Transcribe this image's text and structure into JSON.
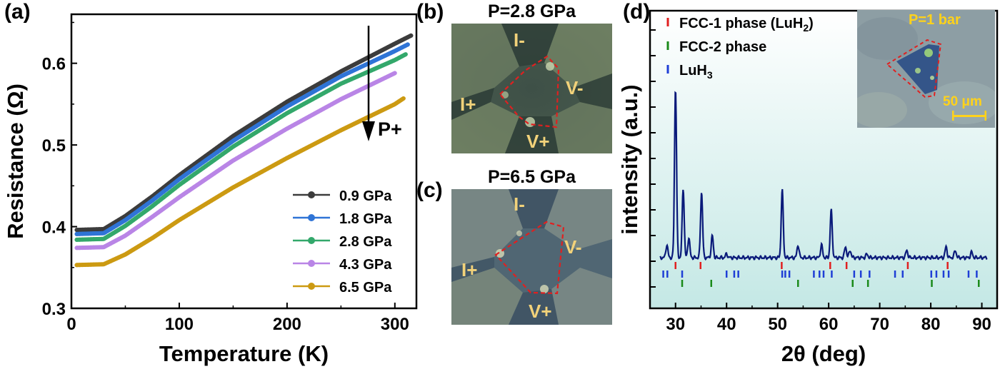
{
  "panels": {
    "a": "(a)",
    "b": "(b)",
    "c": "(c)",
    "d": "(d)"
  },
  "photo_b": {
    "title": "P=2.8 GPa",
    "labels": {
      "i_minus": "I-",
      "i_plus": "I+",
      "v_minus": "V-",
      "v_plus": "V+"
    }
  },
  "photo_c": {
    "title": "P=6.5 GPa",
    "labels": {
      "i_minus": "I-",
      "i_plus": "I+",
      "v_minus": "V-",
      "v_plus": "V+"
    }
  },
  "chart_data": [
    {
      "type": "line",
      "xlabel": "Temperature (K)",
      "ylabel": "Resistance (Ω)",
      "xlim": [
        0,
        320
      ],
      "ylim": [
        0.3,
        0.66
      ],
      "xticks": [
        "0",
        "100",
        "200",
        "300"
      ],
      "yticks": [
        "0.3",
        "0.4",
        "0.5",
        "0.6"
      ],
      "annotation": "P+",
      "legend_position": "bottom-right",
      "series": [
        {
          "name": "0.9 GPa",
          "color": "#3c3c3c",
          "x": [
            5,
            30,
            50,
            75,
            100,
            150,
            200,
            250,
            300,
            315
          ],
          "y": [
            0.396,
            0.397,
            0.413,
            0.437,
            0.463,
            0.511,
            0.553,
            0.59,
            0.624,
            0.634
          ]
        },
        {
          "name": "1.8 GPa",
          "color": "#2f74d6",
          "x": [
            5,
            30,
            50,
            75,
            100,
            150,
            200,
            250,
            300,
            312
          ],
          "y": [
            0.391,
            0.392,
            0.408,
            0.432,
            0.458,
            0.505,
            0.547,
            0.584,
            0.615,
            0.623
          ]
        },
        {
          "name": "2.8 GPa",
          "color": "#33a86b",
          "x": [
            5,
            30,
            50,
            75,
            100,
            150,
            200,
            250,
            300,
            310
          ],
          "y": [
            0.384,
            0.385,
            0.401,
            0.425,
            0.451,
            0.498,
            0.539,
            0.575,
            0.604,
            0.611
          ]
        },
        {
          "name": "4.3 GPa",
          "color": "#b985e6",
          "x": [
            5,
            30,
            50,
            75,
            100,
            150,
            200,
            250,
            300
          ],
          "y": [
            0.374,
            0.375,
            0.389,
            0.412,
            0.436,
            0.481,
            0.52,
            0.556,
            0.588
          ]
        },
        {
          "name": "6.5 GPa",
          "color": "#cc9a12",
          "x": [
            5,
            30,
            50,
            75,
            100,
            150,
            200,
            250,
            300,
            308
          ],
          "y": [
            0.353,
            0.354,
            0.366,
            0.386,
            0.408,
            0.448,
            0.484,
            0.518,
            0.55,
            0.557
          ]
        }
      ]
    },
    {
      "type": "line",
      "xlabel": "2θ (deg)",
      "ylabel": "intensity (a.u.)",
      "xlim": [
        25,
        93
      ],
      "ylim": [
        0,
        1
      ],
      "xticks": [
        "30",
        "40",
        "50",
        "60",
        "70",
        "80",
        "90"
      ],
      "legend_position": "top-left",
      "legend": [
        {
          "label": "FCC-1 phase (LuH2)",
          "color": "#e02020"
        },
        {
          "label": "FCC-2 phase",
          "color": "#1a8a1a"
        },
        {
          "label": "LuH3",
          "color": "#1f3fd6"
        }
      ],
      "peaks": [
        {
          "x": 28.3,
          "h": 0.07
        },
        {
          "x": 30.0,
          "h": 0.93
        },
        {
          "x": 31.5,
          "h": 0.38
        },
        {
          "x": 32.6,
          "h": 0.11
        },
        {
          "x": 35.1,
          "h": 0.36
        },
        {
          "x": 37.2,
          "h": 0.12
        },
        {
          "x": 40.0,
          "h": 0.02
        },
        {
          "x": 50.9,
          "h": 0.37
        },
        {
          "x": 54.0,
          "h": 0.07
        },
        {
          "x": 58.6,
          "h": 0.07
        },
        {
          "x": 60.5,
          "h": 0.26
        },
        {
          "x": 63.3,
          "h": 0.06
        },
        {
          "x": 64.2,
          "h": 0.04
        },
        {
          "x": 67.5,
          "h": 0.02
        },
        {
          "x": 75.3,
          "h": 0.04
        },
        {
          "x": 83.0,
          "h": 0.06
        },
        {
          "x": 84.8,
          "h": 0.04
        },
        {
          "x": 88.0,
          "h": 0.03
        }
      ],
      "tick_marks": {
        "FCC-1 phase (LuH2)": [
          30.0,
          34.9,
          50.8,
          60.3,
          63.5,
          75.5,
          83.3
        ],
        "FCC-2 phase": [
          31.3,
          37.0,
          54.0,
          64.7,
          67.7,
          80.2,
          89.4
        ],
        "LuH3": [
          27.6,
          28.4,
          31.3,
          40.0,
          41.5,
          42.3,
          50.9,
          51.5,
          52.3,
          57.1,
          58.2,
          59.0,
          60.6,
          65.0,
          66.3,
          68.0,
          73.0,
          74.5,
          80.1,
          81.1,
          82.5,
          83.5,
          87.4,
          89.0
        ]
      }
    }
  ],
  "inset": {
    "title": "P=1 bar",
    "scale_bar": "50 μm"
  }
}
